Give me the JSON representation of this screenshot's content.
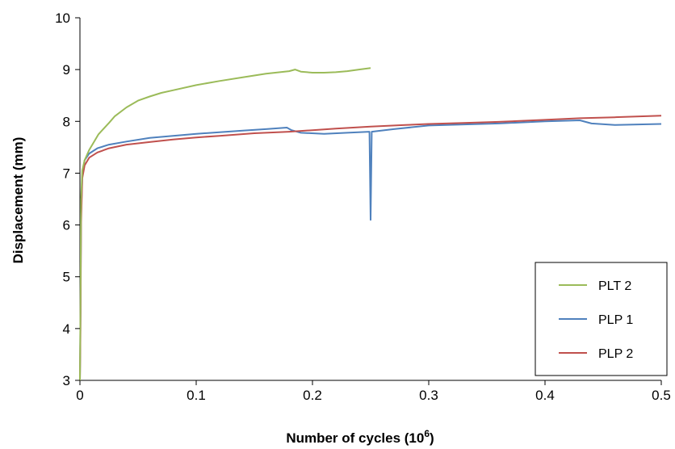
{
  "chart_data": {
    "type": "line",
    "title": "",
    "xlabel": "Number of cycles (10",
    "xlabel_exponent": "6",
    "xlabel_suffix": ")",
    "ylabel": "Displacement (mm)",
    "xlim": [
      0,
      0.5
    ],
    "ylim": [
      3,
      10
    ],
    "x_ticks": [
      0,
      0.1,
      0.2,
      0.3,
      0.4,
      0.5
    ],
    "x_tick_labels": [
      "0",
      "0.1",
      "0.2",
      "0.3",
      "0.4",
      "0.5"
    ],
    "y_ticks": [
      3,
      4,
      5,
      6,
      7,
      8,
      9,
      10
    ],
    "y_tick_labels": [
      "3",
      "4",
      "5",
      "6",
      "7",
      "8",
      "9",
      "10"
    ],
    "grid": false,
    "legend_position": "bottom-right",
    "series": [
      {
        "name": "PLT 2",
        "color": "#9BBB59",
        "points": [
          [
            0,
            3.0
          ],
          [
            0.0005,
            4.5
          ],
          [
            0.001,
            6.5
          ],
          [
            0.002,
            7.05
          ],
          [
            0.004,
            7.25
          ],
          [
            0.008,
            7.45
          ],
          [
            0.012,
            7.6
          ],
          [
            0.016,
            7.75
          ],
          [
            0.02,
            7.85
          ],
          [
            0.025,
            7.97
          ],
          [
            0.03,
            8.1
          ],
          [
            0.04,
            8.27
          ],
          [
            0.05,
            8.4
          ],
          [
            0.06,
            8.48
          ],
          [
            0.07,
            8.55
          ],
          [
            0.08,
            8.6
          ],
          [
            0.1,
            8.7
          ],
          [
            0.12,
            8.78
          ],
          [
            0.14,
            8.85
          ],
          [
            0.16,
            8.92
          ],
          [
            0.18,
            8.97
          ],
          [
            0.185,
            9.0
          ],
          [
            0.19,
            8.96
          ],
          [
            0.2,
            8.94
          ],
          [
            0.21,
            8.94
          ],
          [
            0.22,
            8.95
          ],
          [
            0.23,
            8.97
          ],
          [
            0.24,
            9.0
          ],
          [
            0.25,
            9.03
          ]
        ]
      },
      {
        "name": "PLP 1",
        "color": "#4F81BD",
        "points": [
          [
            0,
            3.0
          ],
          [
            0.0005,
            4.3
          ],
          [
            0.001,
            6.2
          ],
          [
            0.002,
            6.95
          ],
          [
            0.004,
            7.25
          ],
          [
            0.008,
            7.38
          ],
          [
            0.015,
            7.48
          ],
          [
            0.025,
            7.55
          ],
          [
            0.04,
            7.61
          ],
          [
            0.06,
            7.68
          ],
          [
            0.08,
            7.72
          ],
          [
            0.1,
            7.76
          ],
          [
            0.12,
            7.79
          ],
          [
            0.14,
            7.82
          ],
          [
            0.16,
            7.85
          ],
          [
            0.178,
            7.88
          ],
          [
            0.182,
            7.83
          ],
          [
            0.19,
            7.78
          ],
          [
            0.21,
            7.76
          ],
          [
            0.23,
            7.78
          ],
          [
            0.249,
            7.8
          ],
          [
            0.25,
            6.1
          ],
          [
            0.251,
            7.8
          ],
          [
            0.27,
            7.85
          ],
          [
            0.3,
            7.92
          ],
          [
            0.33,
            7.94
          ],
          [
            0.36,
            7.96
          ],
          [
            0.4,
            8.0
          ],
          [
            0.43,
            8.02
          ],
          [
            0.44,
            7.96
          ],
          [
            0.46,
            7.93
          ],
          [
            0.48,
            7.94
          ],
          [
            0.5,
            7.95
          ]
        ]
      },
      {
        "name": "PLP 2",
        "color": "#C0504D",
        "points": [
          [
            0,
            3.0
          ],
          [
            0.0005,
            4.0
          ],
          [
            0.001,
            6.0
          ],
          [
            0.002,
            6.9
          ],
          [
            0.004,
            7.15
          ],
          [
            0.008,
            7.3
          ],
          [
            0.015,
            7.4
          ],
          [
            0.025,
            7.48
          ],
          [
            0.04,
            7.55
          ],
          [
            0.06,
            7.6
          ],
          [
            0.08,
            7.65
          ],
          [
            0.1,
            7.69
          ],
          [
            0.12,
            7.72
          ],
          [
            0.15,
            7.77
          ],
          [
            0.18,
            7.8
          ],
          [
            0.2,
            7.83
          ],
          [
            0.22,
            7.86
          ],
          [
            0.25,
            7.9
          ],
          [
            0.28,
            7.93
          ],
          [
            0.3,
            7.95
          ],
          [
            0.33,
            7.97
          ],
          [
            0.36,
            7.99
          ],
          [
            0.4,
            8.03
          ],
          [
            0.43,
            8.06
          ],
          [
            0.46,
            8.08
          ],
          [
            0.5,
            8.11
          ]
        ]
      }
    ]
  }
}
